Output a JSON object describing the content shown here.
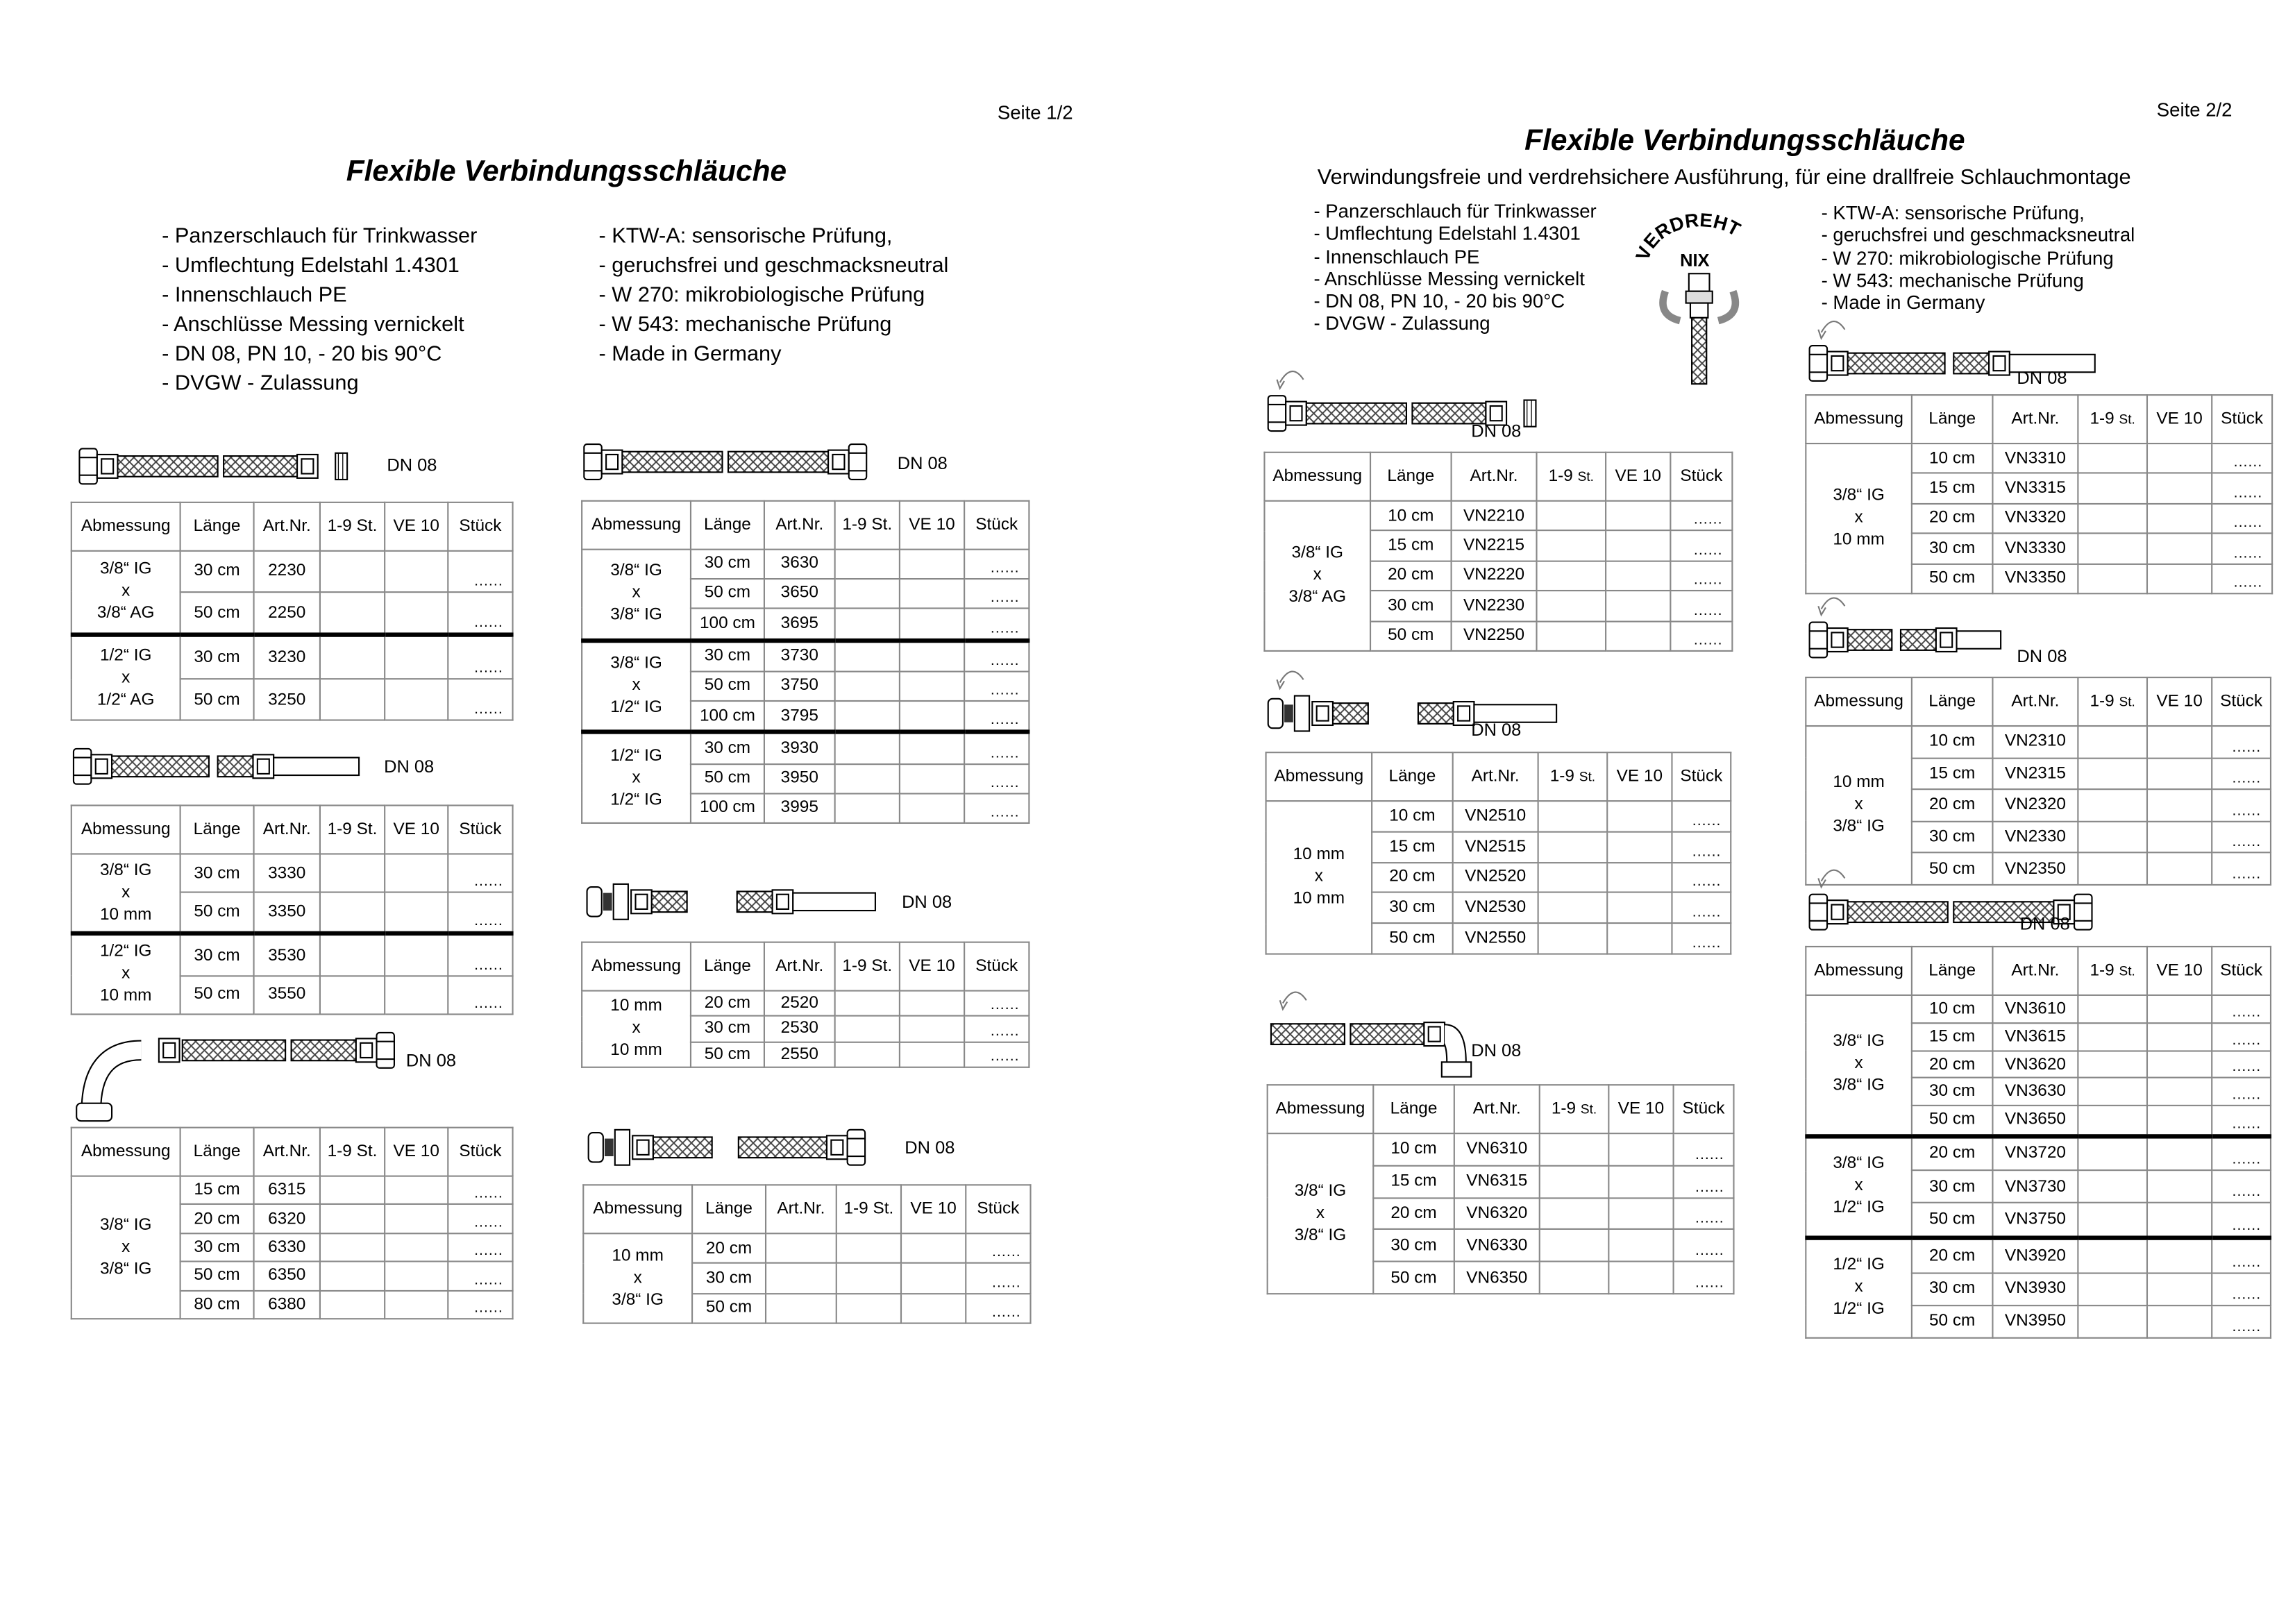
{
  "page1": {
    "page_label": "Seite 1/2",
    "title": "Flexible Verbindungsschläuche",
    "bullets_left": [
      "- Panzerschlauch für Trinkwasser",
      "- Umflechtung Edelstahl 1.4301",
      "- Innenschlauch PE",
      "- Anschlüsse Messing vernickelt",
      "- DN 08, PN 10, - 20 bis 90°C",
      "- DVGW - Zulassung"
    ],
    "bullets_right": [
      "- KTW-A: sensorische Prüfung,",
      "- geruchsfrei und geschmacksneutral",
      "- W 270: mikrobiologische Prüfung",
      "- W 543: mechanische Prüfung",
      "- Made in Germany"
    ]
  },
  "page2": {
    "page_label": "Seite 2/2",
    "title": "Flexible Verbindungsschläuche",
    "subtitle": "Verwindungsfreie und verdrehsichere Ausführung, für eine drallfreie Schlauchmontage",
    "bullets_left": [
      "- Panzerschlauch für Trinkwasser",
      "- Umflechtung Edelstahl 1.4301",
      "- Innenschlauch PE",
      "- Anschlüsse Messing vernickelt",
      "- DN 08, PN 10, - 20 bis 90°C",
      "- DVGW - Zulassung"
    ],
    "bullets_right": [
      "- KTW-A: sensorische Prüfung,",
      "- geruchsfrei und geschmacksneutral",
      "- W 270: mikrobiologische Prüfung",
      "- W 543: mechanische Prüfung",
      "- Made in Germany"
    ],
    "logo_text": "VERDREHT NIX"
  },
  "columns": [
    "Abmessung",
    "Länge",
    "Art.Nr.",
    "1-9 St.",
    "VE 10",
    "Stück"
  ],
  "qty_placeholder": "......",
  "tables": [
    {
      "dn": "DN 08",
      "icon": "hose-ig-ag-icon",
      "groups": [
        {
          "dim": [
            "3/8“ IG",
            "x",
            "3/8“ AG"
          ],
          "rows": [
            [
              "30 cm",
              "2230"
            ],
            [
              "50 cm",
              "2250"
            ]
          ]
        },
        {
          "dim": [
            "1/2“ IG",
            "x",
            "1/2“ AG"
          ],
          "rows": [
            [
              "30 cm",
              "3230"
            ],
            [
              "50 cm",
              "3250"
            ]
          ]
        }
      ]
    },
    {
      "dn": "DN 08",
      "icon": "hose-ig-pipe-icon",
      "groups": [
        {
          "dim": [
            "3/8“ IG",
            "x",
            "10 mm"
          ],
          "rows": [
            [
              "30 cm",
              "3330"
            ],
            [
              "50 cm",
              "3350"
            ]
          ]
        },
        {
          "dim": [
            "1/2“ IG",
            "x",
            "10 mm"
          ],
          "rows": [
            [
              "30 cm",
              "3530"
            ],
            [
              "50 cm",
              "3550"
            ]
          ]
        }
      ]
    },
    {
      "dn": "DN 08",
      "icon": "hose-elbow-ig-icon",
      "groups": [
        {
          "dim": [
            "3/8“ IG",
            "x",
            "3/8“ IG"
          ],
          "rows": [
            [
              "15 cm",
              "6315"
            ],
            [
              "20 cm",
              "6320"
            ],
            [
              "30 cm",
              "6330"
            ],
            [
              "50 cm",
              "6350"
            ],
            [
              "80 cm",
              "6380"
            ]
          ]
        }
      ]
    },
    {
      "dn": "DN 08",
      "icon": "hose-ig-ig-icon",
      "groups": [
        {
          "dim": [
            "3/8“ IG",
            "x",
            "3/8“ IG"
          ],
          "rows": [
            [
              "30 cm",
              "3630"
            ],
            [
              "50 cm",
              "3650"
            ],
            [
              "100 cm",
              "3695"
            ]
          ]
        },
        {
          "dim": [
            "3/8“ IG",
            "x",
            "1/2“ IG"
          ],
          "rows": [
            [
              "30 cm",
              "3730"
            ],
            [
              "50 cm",
              "3750"
            ],
            [
              "100 cm",
              "3795"
            ]
          ]
        },
        {
          "dim": [
            "1/2“ IG",
            "x",
            "1/2“ IG"
          ],
          "rows": [
            [
              "30 cm",
              "3930"
            ],
            [
              "50 cm",
              "3950"
            ],
            [
              "100 cm",
              "3995"
            ]
          ]
        }
      ]
    },
    {
      "dn": "DN 08",
      "icon": "hose-compression-pipe-icon",
      "groups": [
        {
          "dim": [
            "10 mm",
            "x",
            "10 mm"
          ],
          "rows": [
            [
              "20 cm",
              "2520"
            ],
            [
              "30 cm",
              "2530"
            ],
            [
              "50 cm",
              "2550"
            ]
          ]
        }
      ]
    },
    {
      "dn": "DN 08",
      "icon": "hose-compression-ig-icon",
      "groups": [
        {
          "dim": [
            "10 mm",
            "x",
            "3/8“ IG"
          ],
          "rows": [
            [
              "20 cm",
              ""
            ],
            [
              "30 cm",
              ""
            ],
            [
              "50 cm",
              ""
            ]
          ]
        }
      ]
    },
    {
      "dn": "DN 08",
      "icon": "hose-ig-ag-rotating-icon",
      "groups": [
        {
          "dim": [
            "3/8“ IG",
            "x",
            "3/8“ AG"
          ],
          "rows": [
            [
              "10 cm",
              "VN2210"
            ],
            [
              "15 cm",
              "VN2215"
            ],
            [
              "20 cm",
              "VN2220"
            ],
            [
              "30 cm",
              "VN2230"
            ],
            [
              "50 cm",
              "VN2250"
            ]
          ]
        }
      ]
    },
    {
      "dn": "DN 08",
      "icon": "hose-compression-pipe-rotating-icon",
      "groups": [
        {
          "dim": [
            "10 mm",
            "x",
            "10 mm"
          ],
          "rows": [
            [
              "10 cm",
              "VN2510"
            ],
            [
              "15 cm",
              "VN2515"
            ],
            [
              "20 cm",
              "VN2520"
            ],
            [
              "30 cm",
              "VN2530"
            ],
            [
              "50 cm",
              "VN2550"
            ]
          ]
        }
      ]
    },
    {
      "dn": "DN 08",
      "icon": "hose-elbow-rotating-icon",
      "groups": [
        {
          "dim": [
            "3/8“ IG",
            "x",
            "3/8“ IG"
          ],
          "rows": [
            [
              "10 cm",
              "VN6310"
            ],
            [
              "15 cm",
              "VN6315"
            ],
            [
              "20 cm",
              "VN6320"
            ],
            [
              "30 cm",
              "VN6330"
            ],
            [
              "50 cm",
              "VN6350"
            ]
          ]
        }
      ]
    },
    {
      "dn": "DN 08",
      "icon": "hose-ig-pipe-rotating-icon",
      "groups": [
        {
          "dim": [
            "3/8“ IG",
            "x",
            "10 mm"
          ],
          "rows": [
            [
              "10 cm",
              "VN3310"
            ],
            [
              "15 cm",
              "VN3315"
            ],
            [
              "20 cm",
              "VN3320"
            ],
            [
              "30 cm",
              "VN3330"
            ],
            [
              "50 cm",
              "VN3350"
            ]
          ]
        }
      ]
    },
    {
      "dn": "DN 08",
      "icon": "hose-pipe-ig-rotating-icon",
      "groups": [
        {
          "dim": [
            "10 mm",
            "x",
            "3/8“ IG"
          ],
          "rows": [
            [
              "10 cm",
              "VN2310"
            ],
            [
              "15 cm",
              "VN2315"
            ],
            [
              "20 cm",
              "VN2320"
            ],
            [
              "30 cm",
              "VN2330"
            ],
            [
              "50 cm",
              "VN2350"
            ]
          ]
        }
      ]
    },
    {
      "dn": "DN 08",
      "icon": "hose-ig-ig-rotating-icon",
      "groups": [
        {
          "dim": [
            "3/8“ IG",
            "x",
            "3/8“ IG"
          ],
          "rows": [
            [
              "10 cm",
              "VN3610"
            ],
            [
              "15 cm",
              "VN3615"
            ],
            [
              "20 cm",
              "VN3620"
            ],
            [
              "30 cm",
              "VN3630"
            ],
            [
              "50 cm",
              "VN3650"
            ]
          ]
        },
        {
          "dim": [
            "3/8“ IG",
            "x",
            "1/2“ IG"
          ],
          "rows": [
            [
              "20 cm",
              "VN3720"
            ],
            [
              "30 cm",
              "VN3730"
            ],
            [
              "50 cm",
              "VN3750"
            ]
          ]
        },
        {
          "dim": [
            "1/2“ IG",
            "x",
            "1/2“ IG"
          ],
          "rows": [
            [
              "20 cm",
              "VN3920"
            ],
            [
              "30 cm",
              "VN3930"
            ],
            [
              "50 cm",
              "VN3950"
            ]
          ]
        }
      ]
    }
  ]
}
